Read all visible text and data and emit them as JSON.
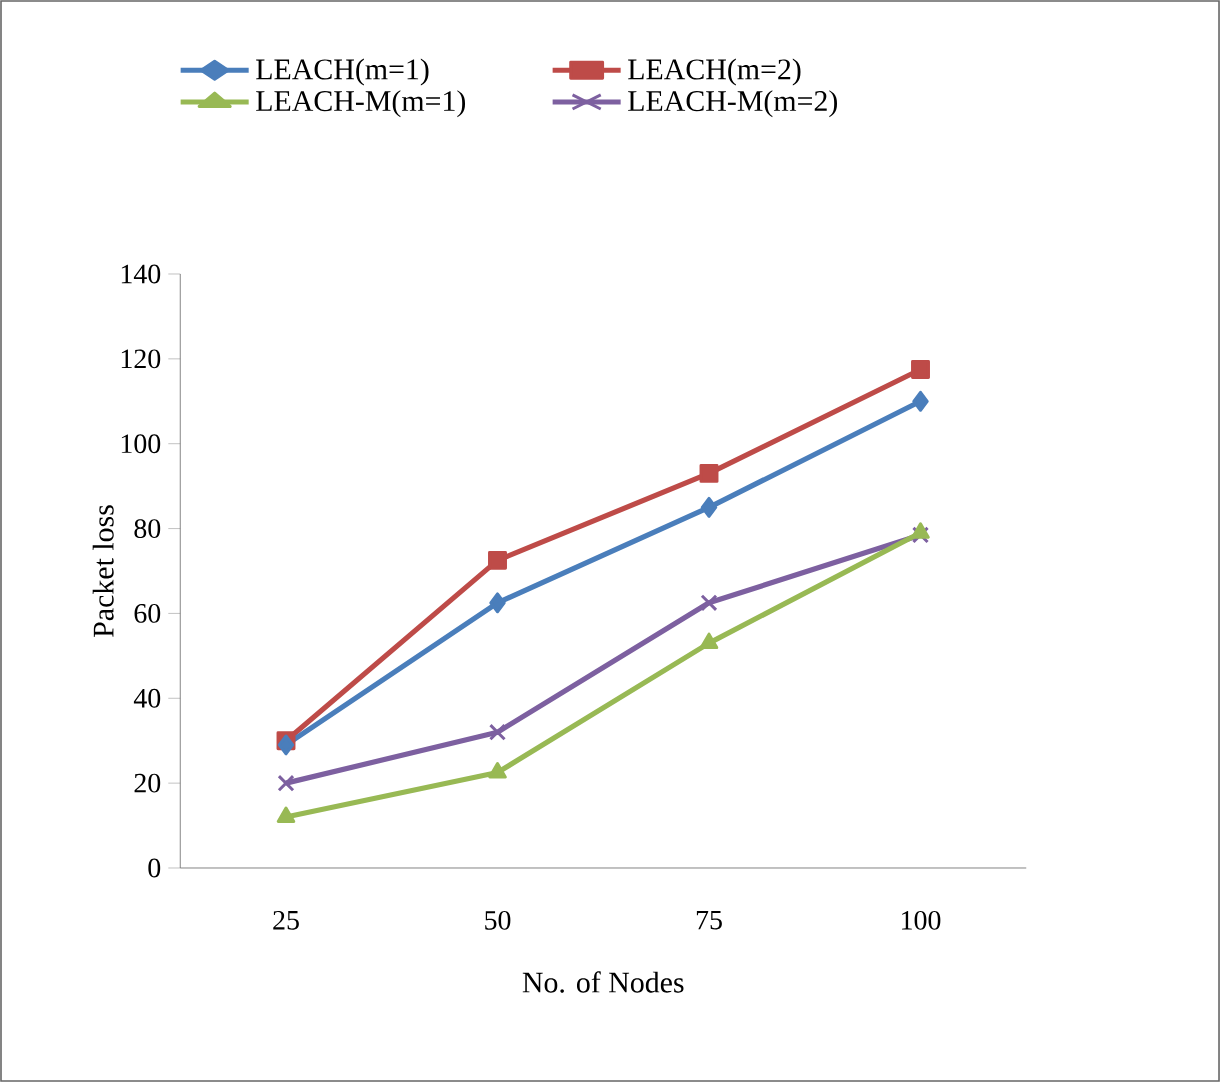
{
  "chart_data": {
    "type": "line",
    "xlabel": "No. of Nodes",
    "ylabel": "Packet loss",
    "categories": [
      "25",
      "50",
      "75",
      "100"
    ],
    "ylim": [
      0,
      140
    ],
    "yticks": [
      0,
      20,
      40,
      60,
      80,
      100,
      120,
      140
    ],
    "legend": "top",
    "grid": false,
    "series": [
      {
        "name": "LEACH(m=1)",
        "color": "#4a7ebb",
        "marker": "diamond",
        "values": [
          29,
          62.5,
          85,
          110
        ]
      },
      {
        "name": "LEACH(m=2)",
        "color": "#be4b48",
        "marker": "square",
        "values": [
          30,
          72.5,
          93,
          117.5
        ]
      },
      {
        "name": "LEACH-M(m=1)",
        "color": "#98b954",
        "marker": "triangle",
        "values": [
          12,
          22.5,
          53,
          79
        ]
      },
      {
        "name": "LEACH-M(m=2)",
        "color": "#7d60a0",
        "marker": "cross",
        "values": [
          20,
          32,
          62.5,
          78.5
        ]
      }
    ]
  }
}
